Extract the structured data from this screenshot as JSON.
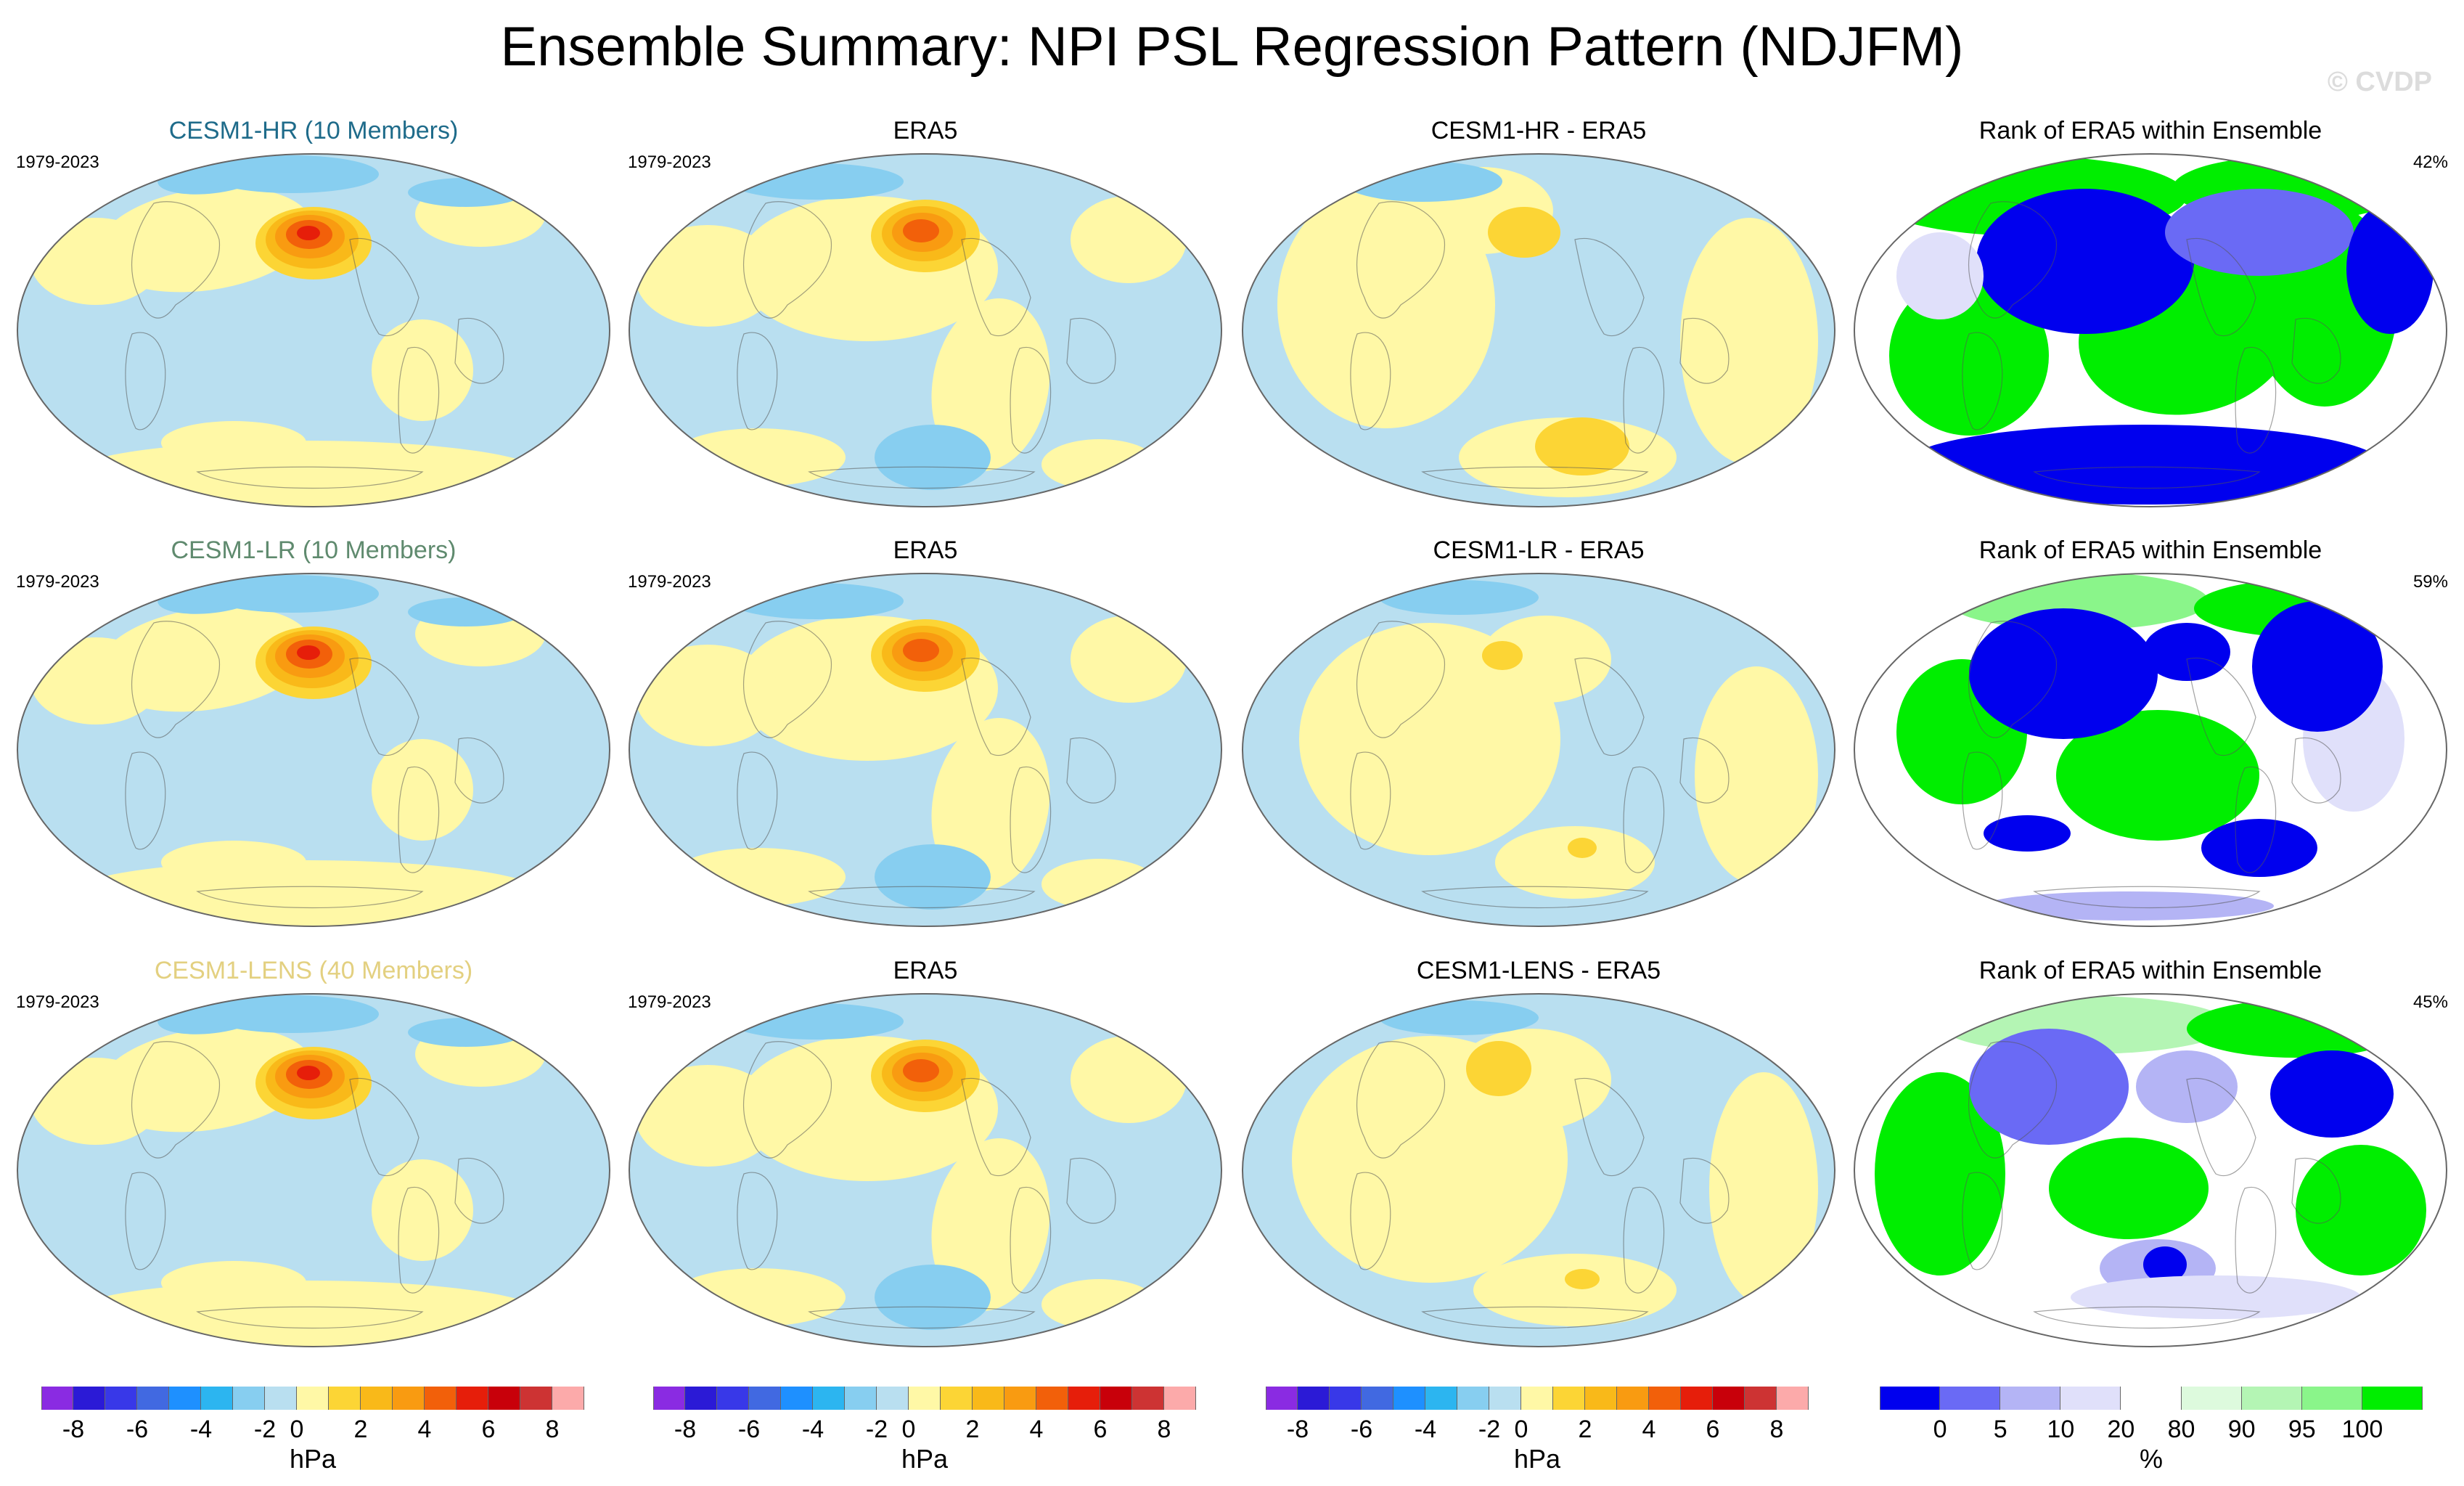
{
  "title": "Ensemble Summary: NPI PSL Regression Pattern (NDJFM)",
  "watermark": "© CVDP",
  "period": "1979-2023",
  "rows": [
    {
      "model": {
        "label": "CESM1-HR (10 Members)",
        "color": "#1e6b8a"
      },
      "obs": "ERA5",
      "diff": "CESM1-HR - ERA5",
      "rank": {
        "title": "Rank of ERA5 within Ensemble",
        "pct": "42%"
      }
    },
    {
      "model": {
        "label": "CESM1-LR (10 Members)",
        "color": "#5f8a6e"
      },
      "obs": "ERA5",
      "diff": "CESM1-LR - ERA5",
      "rank": {
        "title": "Rank of ERA5 within Ensemble",
        "pct": "59%"
      }
    },
    {
      "model": {
        "label": "CESM1-LENS (40 Members)",
        "color": "#e3d080"
      },
      "obs": "ERA5",
      "diff": "CESM1-LENS - ERA5",
      "rank": {
        "title": "Rank of ERA5 within Ensemble",
        "pct": "45%"
      }
    }
  ],
  "colorbars": {
    "psl": {
      "unit": "hPa",
      "ticks": [
        "-8",
        "-6",
        "-4",
        "-2",
        "0",
        "2",
        "4",
        "6",
        "8"
      ],
      "colors": [
        "#8a2be2",
        "#2b1ad6",
        "#3838e8",
        "#4169e1",
        "#1e90ff",
        "#2cb5f0",
        "#87cef0",
        "#b9dff0",
        "#fff8a6",
        "#fcd535",
        "#f9b919",
        "#f99b11",
        "#f2600a",
        "#e61e0a",
        "#c8000a",
        "#cd3333",
        "#fcaaaa"
      ]
    },
    "rank": {
      "unit": "%",
      "ticks": [
        "0",
        "5",
        "10",
        "20",
        "80",
        "90",
        "95",
        "100"
      ],
      "colors": [
        "#0000ee",
        "#6a6af5",
        "#b4b4f5",
        "#e0e0fa",
        "#ffffff",
        "#ddfadd",
        "#b4f5b4",
        "#8af58a",
        "#00ee00"
      ]
    }
  }
}
